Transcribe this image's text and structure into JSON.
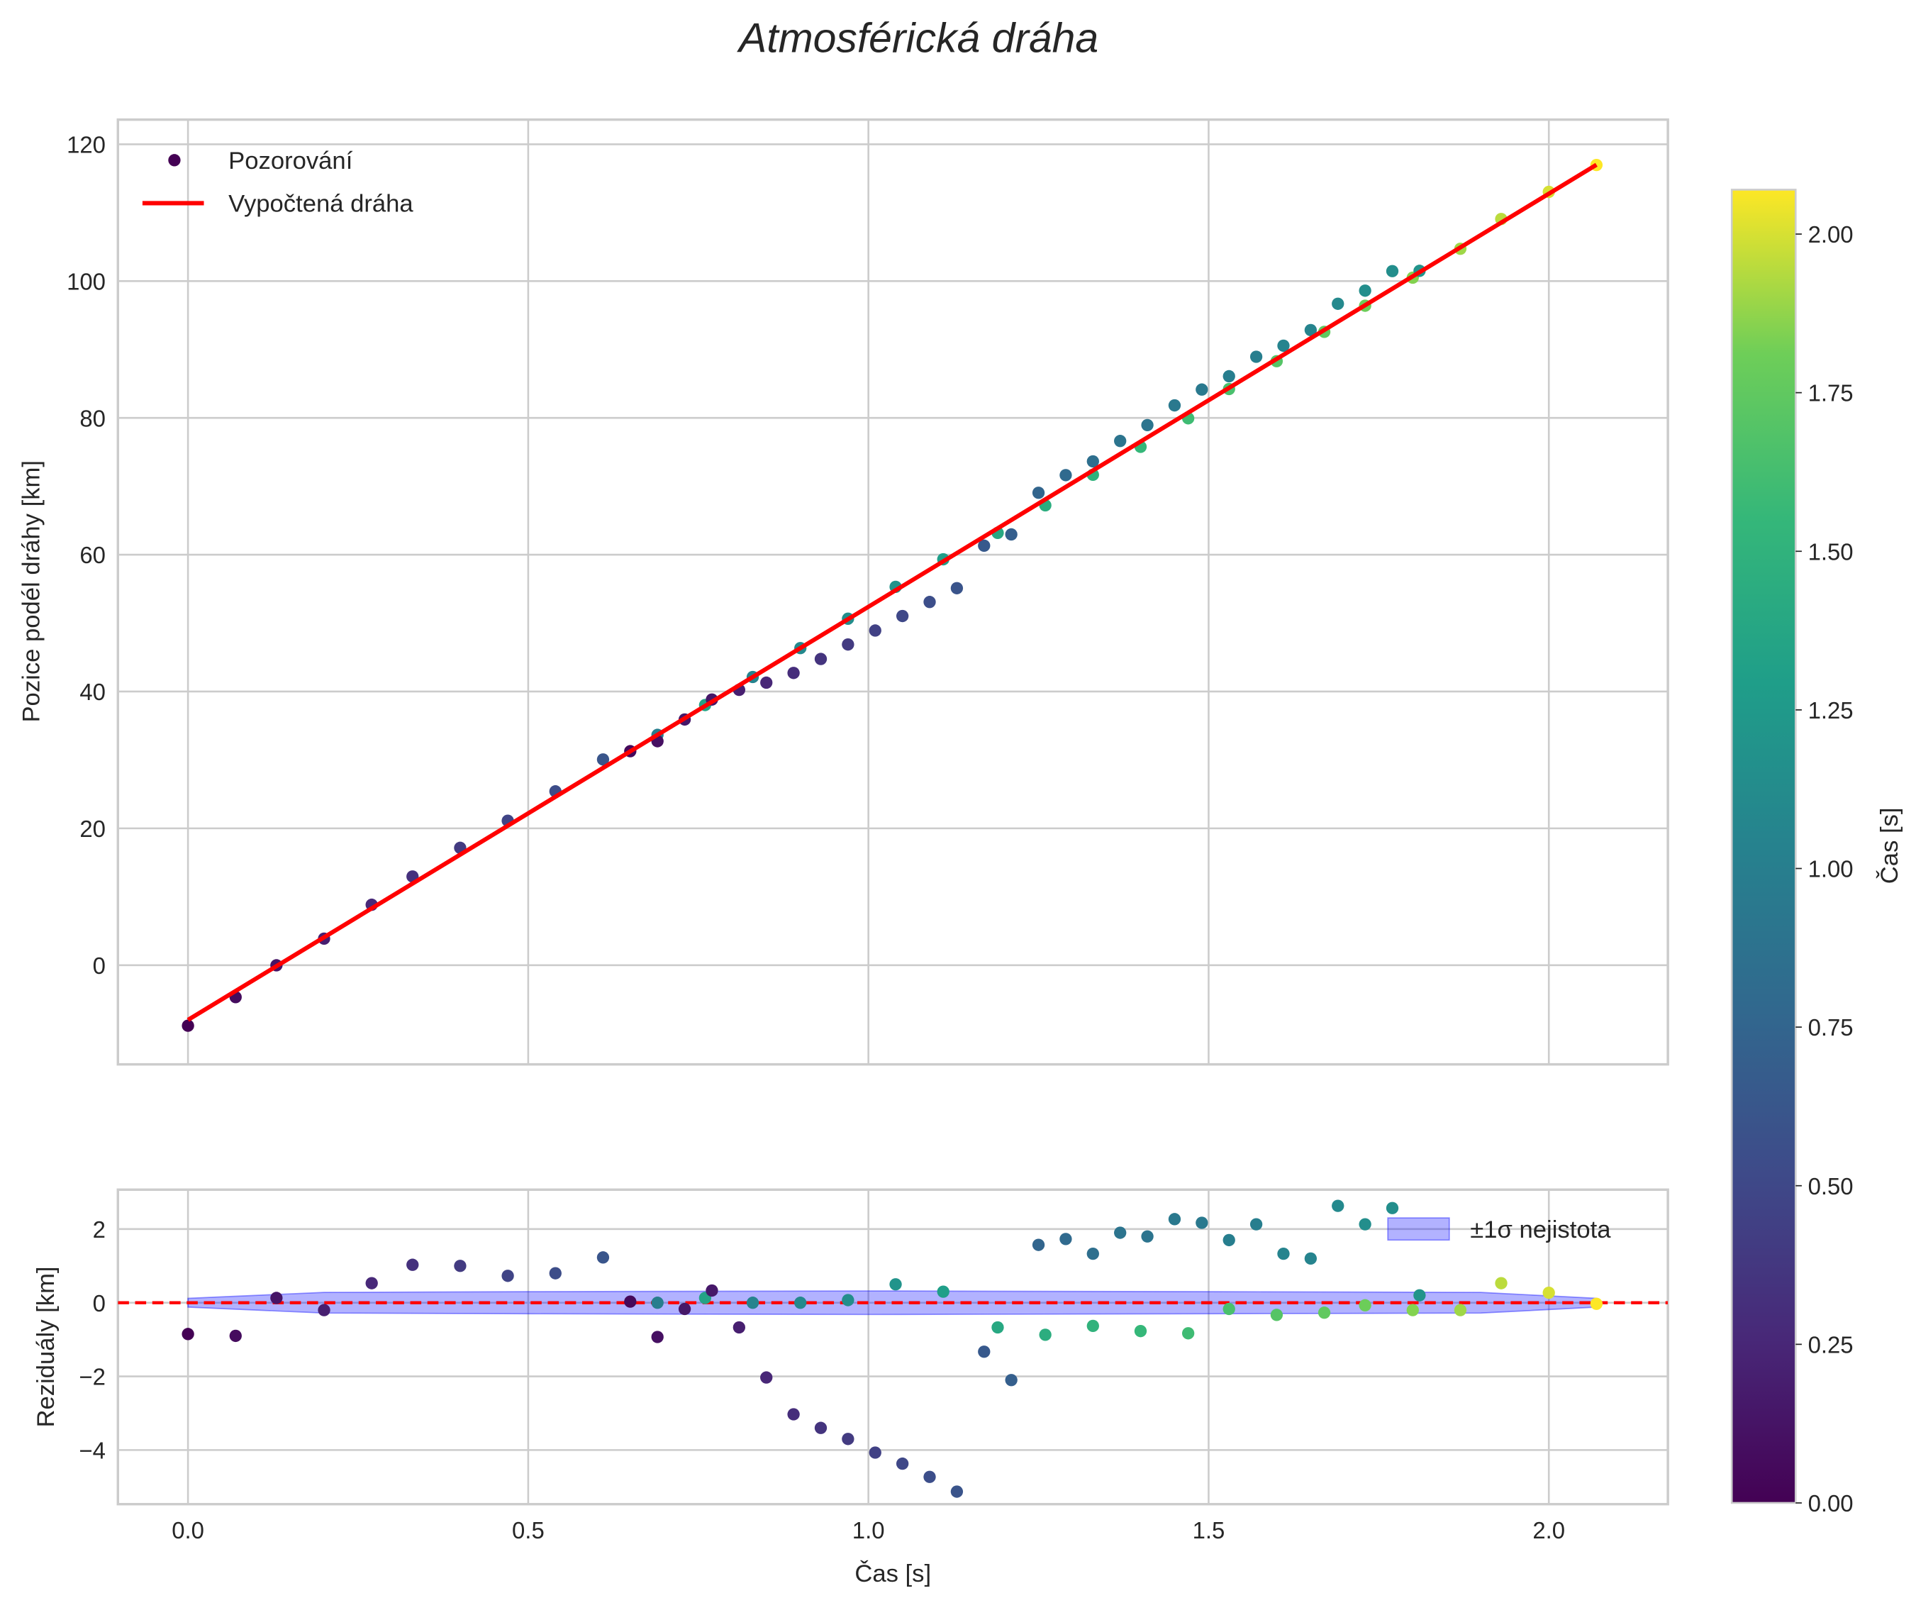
{
  "chart_data": {
    "type": "scatter",
    "title": "Atmosférická dráha",
    "top_panel": {
      "ylabel": "Pozice podél dráhy [km]",
      "ylim": [
        -14.5,
        123.6
      ],
      "yticks": [
        0,
        20,
        40,
        60,
        80,
        100,
        120
      ],
      "ytick_labels": [
        "0",
        "20",
        "40",
        "60",
        "80",
        "100",
        "120"
      ],
      "legend": {
        "placement": "top-left",
        "entries": [
          "Pozorování",
          "Vypočtená dráha"
        ]
      },
      "fit_line": {
        "t": [
          0.0,
          2.07
        ],
        "y": [
          -8.0,
          117.0
        ],
        "color": "#ff0000"
      }
    },
    "bottom_panel": {
      "ylabel": "Reziduály [km]",
      "xlabel": "Čas [s]",
      "ylim": [
        -5.47,
        3.07
      ],
      "yticks": [
        -4,
        -2,
        0,
        2
      ],
      "ytick_labels": [
        "−4",
        "−2",
        "0",
        "2"
      ],
      "legend": {
        "placement": "top-right",
        "entries": [
          "±1σ nejistota"
        ]
      },
      "band": {
        "t": [
          0.0,
          0.2,
          0.5,
          1.0,
          1.5,
          1.9,
          2.07
        ],
        "sigma": [
          0.12,
          0.28,
          0.3,
          0.32,
          0.3,
          0.28,
          0.12
        ],
        "color": "#0000ff"
      },
      "zero_line_color": "#ff0000"
    },
    "xlim": [
      -0.103,
      2.175
    ],
    "xticks": [
      0.0,
      0.5,
      1.0,
      1.5,
      2.0
    ],
    "xtick_labels": [
      "0.0",
      "0.5",
      "1.0",
      "1.5",
      "2.0"
    ],
    "colorbar": {
      "label": "Čas [s]",
      "range": [
        0.0,
        2.07
      ],
      "ticks": [
        0.0,
        0.25,
        0.5,
        0.75,
        1.0,
        1.25,
        1.5,
        1.75,
        2.0
      ],
      "tick_labels": [
        "0.00",
        "0.25",
        "0.50",
        "0.75",
        "1.00",
        "1.25",
        "1.50",
        "1.75",
        "2.00"
      ],
      "colormap": "viridis"
    },
    "points": {
      "t": [
        0.0,
        0.07,
        0.13,
        0.2,
        0.27,
        0.33,
        0.4,
        0.47,
        0.54,
        0.61,
        0.65,
        0.69,
        0.69,
        0.73,
        0.76,
        0.77,
        0.81,
        0.83,
        0.85,
        0.89,
        0.9,
        0.93,
        0.97,
        0.97,
        1.01,
        1.04,
        1.05,
        1.09,
        1.11,
        1.13,
        1.17,
        1.19,
        1.21,
        1.25,
        1.26,
        1.29,
        1.33,
        1.33,
        1.37,
        1.4,
        1.41,
        1.45,
        1.47,
        1.49,
        1.53,
        1.53,
        1.57,
        1.6,
        1.61,
        1.65,
        1.67,
        1.69,
        1.73,
        1.73,
        1.77,
        1.8,
        1.81,
        1.87,
        1.93,
        2.0,
        2.07
      ],
      "residual": [
        -0.85,
        -0.9,
        0.13,
        -0.2,
        0.53,
        1.03,
        1.0,
        0.73,
        0.8,
        1.23,
        0.03,
        0.0,
        -0.93,
        -0.17,
        0.13,
        0.33,
        -0.67,
        0.0,
        -2.03,
        -3.03,
        0.0,
        -3.4,
        0.07,
        -3.7,
        -4.07,
        0.5,
        -4.37,
        -4.73,
        0.3,
        -5.13,
        -1.33,
        -0.67,
        -2.1,
        1.57,
        -0.87,
        1.73,
        1.33,
        -0.63,
        1.9,
        -0.77,
        1.8,
        2.27,
        -0.83,
        2.17,
        1.7,
        -0.17,
        2.13,
        -0.33,
        1.33,
        1.2,
        -0.27,
        2.63,
        2.13,
        -0.07,
        2.57,
        -0.2,
        0.2,
        -0.2,
        0.53,
        0.27,
        -0.03
      ],
      "color_value": [
        0.0,
        0.07,
        0.13,
        0.2,
        0.27,
        0.33,
        0.4,
        0.47,
        0.54,
        0.61,
        0.05,
        1.0,
        0.1,
        0.15,
        1.35,
        0.15,
        0.2,
        1.05,
        0.25,
        0.3,
        1.1,
        0.35,
        1.15,
        0.4,
        0.45,
        1.2,
        0.5,
        0.55,
        1.3,
        0.6,
        0.65,
        1.4,
        0.7,
        0.75,
        1.45,
        0.8,
        0.85,
        1.5,
        0.9,
        1.55,
        0.9,
        0.95,
        1.6,
        0.95,
        1.0,
        1.65,
        1.0,
        1.7,
        1.05,
        1.05,
        1.75,
        1.1,
        1.15,
        1.8,
        1.15,
        1.85,
        1.2,
        1.9,
        1.95,
        2.0,
        2.07
      ]
    }
  }
}
